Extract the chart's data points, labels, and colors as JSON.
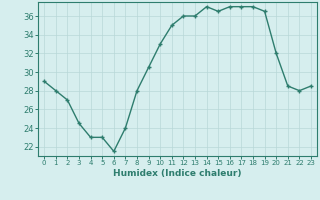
{
  "x": [
    0,
    1,
    2,
    3,
    4,
    5,
    6,
    7,
    8,
    9,
    10,
    11,
    12,
    13,
    14,
    15,
    16,
    17,
    18,
    19,
    20,
    21,
    22,
    23
  ],
  "y": [
    29,
    28,
    27,
    24.5,
    23,
    23,
    21.5,
    24,
    28,
    30.5,
    33,
    35,
    36,
    36,
    37,
    36.5,
    37,
    37,
    37,
    36.5,
    32,
    28.5,
    28,
    28.5
  ],
  "line_color": "#2e7d6e",
  "marker_color": "#2e7d6e",
  "bg_color": "#d6eeee",
  "grid_color": "#b8d8d8",
  "xlabel": "Humidex (Indice chaleur)",
  "ylabel_ticks": [
    22,
    24,
    26,
    28,
    30,
    32,
    34,
    36
  ],
  "xlim": [
    -0.5,
    23.5
  ],
  "ylim": [
    21.0,
    37.5
  ],
  "title_text": ""
}
